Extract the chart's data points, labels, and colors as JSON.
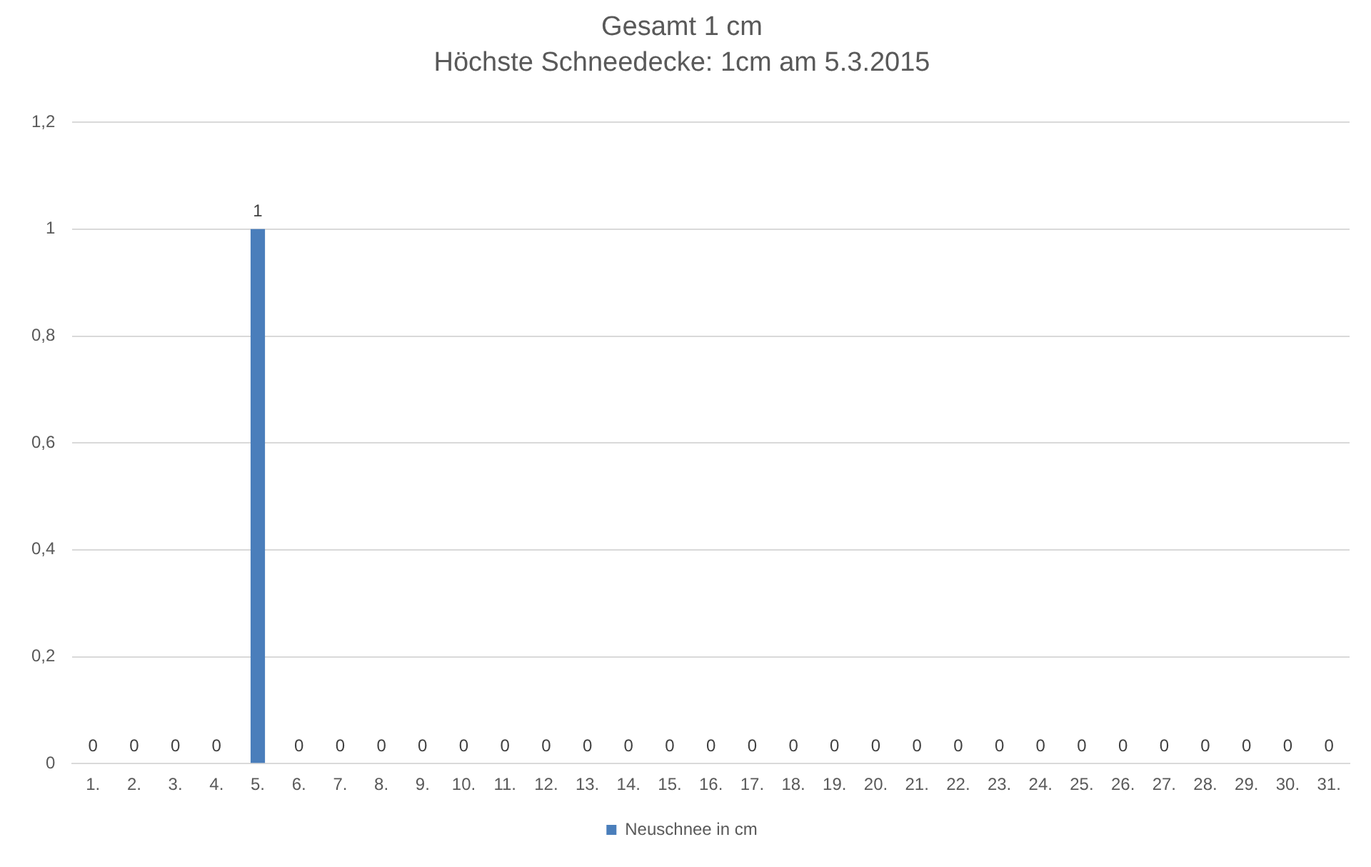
{
  "chart_data": {
    "type": "bar",
    "title": "Gesamt 1 cm",
    "subtitle": "Höchste Schneedecke: 1cm am 5.3.2015",
    "categories": [
      "1.",
      "2.",
      "3.",
      "4.",
      "5.",
      "6.",
      "7.",
      "8.",
      "9.",
      "10.",
      "11.",
      "12.",
      "13.",
      "14.",
      "15.",
      "16.",
      "17.",
      "18.",
      "19.",
      "20.",
      "21.",
      "22.",
      "23.",
      "24.",
      "25.",
      "26.",
      "27.",
      "28.",
      "29.",
      "30.",
      "31."
    ],
    "series": [
      {
        "name": "Neuschnee in cm",
        "color": "#4a7ebb",
        "values": [
          0,
          0,
          0,
          0,
          1,
          0,
          0,
          0,
          0,
          0,
          0,
          0,
          0,
          0,
          0,
          0,
          0,
          0,
          0,
          0,
          0,
          0,
          0,
          0,
          0,
          0,
          0,
          0,
          0,
          0,
          0
        ]
      }
    ],
    "ylim": [
      0,
      1.2
    ],
    "yticks": [
      0,
      {
        "value": 0.2,
        "label": "0,2"
      },
      {
        "value": 0.4,
        "label": "0,4"
      },
      {
        "value": 0.6,
        "label": "0,6"
      },
      {
        "value": 0.8,
        "label": "0,8"
      },
      1,
      {
        "value": 1.2,
        "label": "1,2"
      }
    ],
    "grid": "y",
    "legend": "bottom",
    "data_labels": true
  }
}
